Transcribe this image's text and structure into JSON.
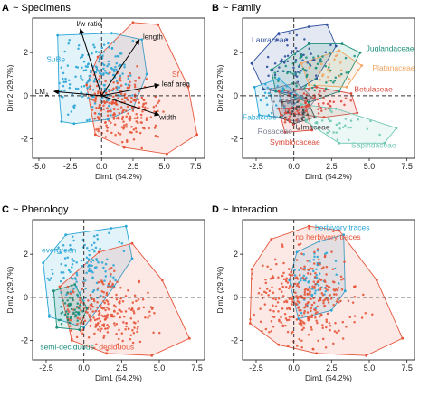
{
  "chart_data": [
    {
      "panel": "A",
      "title": "~ Specimens",
      "type": "scatter",
      "xlabel": "Dim1 (54.2%)",
      "ylabel": "Dim2 (29.7%)",
      "xlim": [
        -5.5,
        8.2
      ],
      "ylim": [
        -2.9,
        3.6
      ],
      "xticks": [
        "-5.0",
        "-2.5",
        "0.0",
        "2.5",
        "5.0",
        "7.5"
      ],
      "xtick_values": [
        -5,
        -2.5,
        0,
        2.5,
        5,
        7.5
      ],
      "yticks": [
        "-2",
        "0",
        "2"
      ],
      "ytick_values": [
        -2,
        0,
        2
      ],
      "grid": false,
      "groups": [
        {
          "name": "SuBe",
          "color": "#2aa6d6",
          "label_at": [
            -4.4,
            1.7
          ],
          "hull": [
            [
              -3.5,
              2.8
            ],
            [
              0.8,
              2.9
            ],
            [
              3.2,
              2.6
            ],
            [
              3.6,
              1.0
            ],
            [
              2.5,
              -0.6
            ],
            [
              0.5,
              -1.1
            ],
            [
              -2.2,
              -1.3
            ],
            [
              -3.2,
              -1.2
            ],
            [
              -3.4,
              0.2
            ]
          ],
          "center": [
            -0.5,
            0.9
          ],
          "spread": [
            1.5,
            0.9
          ],
          "n": 180
        },
        {
          "name": "Sf",
          "color": "#e6553a",
          "label_at": [
            5.6,
            1.0
          ],
          "hull": [
            [
              -0.3,
              1.8
            ],
            [
              2.5,
              3.4
            ],
            [
              4.5,
              3.3
            ],
            [
              6.9,
              0.4
            ],
            [
              7.6,
              -1.8
            ],
            [
              5.2,
              -2.7
            ],
            [
              1.8,
              -2.4
            ],
            [
              -0.5,
              -1.8
            ],
            [
              -1.2,
              0.5
            ]
          ],
          "center": [
            1.3,
            -0.6
          ],
          "spread": [
            1.6,
            0.7
          ],
          "n": 230
        }
      ],
      "variables": [
        {
          "name": "l/w ratio",
          "tip": [
            -1.7,
            3.1
          ],
          "label_at": [
            -2.0,
            3.35
          ]
        },
        {
          "name": "length",
          "tip": [
            3.0,
            2.6
          ],
          "label_at": [
            3.3,
            2.75
          ]
        },
        {
          "name": "leaf area",
          "tip": [
            4.6,
            0.5
          ],
          "label_at": [
            4.8,
            0.55
          ]
        },
        {
          "name": "width",
          "tip": [
            4.6,
            -0.9
          ],
          "label_at": [
            4.6,
            -1.0
          ]
        },
        {
          "name": "LM",
          "subscript": "A",
          "tip": [
            -3.8,
            0.2
          ],
          "label_at": [
            -5.3,
            0.2
          ]
        }
      ]
    },
    {
      "panel": "B",
      "title": "~ Family",
      "type": "scatter",
      "xlabel": "Dim1 (54.2%)",
      "ylabel": "Dim2 (29.7%)",
      "xlim": [
        -3.4,
        8.0
      ],
      "ylim": [
        -2.9,
        3.6
      ],
      "xticks": [
        "-2.5",
        "0.0",
        "2.5",
        "5.0",
        "7.5"
      ],
      "xtick_values": [
        -2.5,
        0,
        2.5,
        5,
        7.5
      ],
      "yticks": [
        "-2",
        "0",
        "2"
      ],
      "ytick_values": [
        -2,
        0,
        2
      ],
      "grid": false,
      "groups": [
        {
          "name": "Lauraceae",
          "color": "#2f4f9e",
          "label_at": [
            -2.8,
            2.6
          ],
          "hull": [
            [
              -2.8,
              1.5
            ],
            [
              -1.0,
              2.9
            ],
            [
              1.0,
              3.2
            ],
            [
              2.2,
              3.3
            ],
            [
              2.8,
              2.3
            ],
            [
              1.5,
              0.8
            ],
            [
              -0.2,
              0.1
            ],
            [
              -2.0,
              0.3
            ]
          ],
          "center": [
            0.3,
            1.6
          ],
          "spread": [
            1.2,
            0.6
          ],
          "n": 55
        },
        {
          "name": "Juglandaceae",
          "color": "#1b8f7a",
          "label_at": [
            4.8,
            2.2
          ],
          "hull": [
            [
              -1.5,
              1.2
            ],
            [
              1.0,
              2.4
            ],
            [
              3.2,
              2.4
            ],
            [
              4.4,
              2.0
            ],
            [
              3.0,
              0.2
            ],
            [
              1.0,
              -0.3
            ],
            [
              -1.2,
              0.2
            ]
          ],
          "center": [
            1.2,
            1.1
          ],
          "spread": [
            1.2,
            0.6
          ],
          "n": 60
        },
        {
          "name": "Platanaceae",
          "color": "#f2a35e",
          "label_at": [
            5.2,
            1.3
          ],
          "hull": [
            [
              0.5,
              1.5
            ],
            [
              3.0,
              2.1
            ],
            [
              4.5,
              1.4
            ],
            [
              3.5,
              0.4
            ],
            [
              1.0,
              0.5
            ]
          ],
          "center": [
            2.3,
            1.2
          ],
          "spread": [
            0.9,
            0.4
          ],
          "n": 20
        },
        {
          "name": "Betulaceae",
          "color": "#d9483b",
          "label_at": [
            4.0,
            0.3
          ],
          "hull": [
            [
              -1.0,
              0.2
            ],
            [
              1.5,
              0.4
            ],
            [
              3.8,
              0.1
            ],
            [
              4.2,
              -0.8
            ],
            [
              2.0,
              -1.0
            ],
            [
              -0.5,
              -0.8
            ]
          ],
          "center": [
            1.3,
            -0.3
          ],
          "spread": [
            1.2,
            0.4
          ],
          "n": 55
        },
        {
          "name": "Fabaceae",
          "color": "#2aa6d6",
          "label_at": [
            -3.4,
            -1.0
          ],
          "hull": [
            [
              -2.6,
              0.4
            ],
            [
              -1.0,
              0.8
            ],
            [
              0.5,
              -0.1
            ],
            [
              -0.8,
              -1.0
            ],
            [
              -2.3,
              -0.9
            ]
          ],
          "center": [
            -1.2,
            -0.2
          ],
          "spread": [
            0.7,
            0.4
          ],
          "n": 25
        },
        {
          "name": "Rosaceae",
          "color": "#7a7f94",
          "label_at": [
            -2.4,
            -1.65
          ],
          "hull": [
            [
              -1.6,
              0.3
            ],
            [
              0.2,
              0.6
            ],
            [
              1.4,
              -0.2
            ],
            [
              0.3,
              -1.2
            ],
            [
              -1.3,
              -1.0
            ]
          ],
          "center": [
            -0.2,
            -0.3
          ],
          "spread": [
            0.7,
            0.4
          ],
          "n": 35
        },
        {
          "name": "Ulmaceae",
          "color": "#444444",
          "label_at": [
            0.1,
            -1.45
          ],
          "hull": [
            [
              -0.8,
              -0.3
            ],
            [
              0.8,
              -0.1
            ],
            [
              1.4,
              -1.0
            ],
            [
              0.0,
              -1.3
            ],
            [
              -0.9,
              -1.0
            ]
          ],
          "center": [
            0.2,
            -0.7
          ],
          "spread": [
            0.5,
            0.3
          ],
          "n": 18
        },
        {
          "name": "Symblocaceae",
          "color": "#d9483b",
          "label_at": [
            -1.6,
            -2.15
          ],
          "hull": [
            [
              -1.0,
              -0.6
            ],
            [
              0.8,
              -0.5
            ],
            [
              1.2,
              -1.6
            ],
            [
              -0.6,
              -1.7
            ]
          ],
          "center": [
            0.0,
            -1.1
          ],
          "spread": [
            0.5,
            0.3
          ],
          "n": 15
        },
        {
          "name": "Sapindaceae",
          "color": "#6fc7b4",
          "label_at": [
            3.8,
            -2.3
          ],
          "hull": [
            [
              0.5,
              -0.4
            ],
            [
              2.8,
              -0.6
            ],
            [
              6.8,
              -1.5
            ],
            [
              6.0,
              -2.2
            ],
            [
              3.0,
              -2.2
            ],
            [
              0.8,
              -1.2
            ]
          ],
          "center": [
            2.8,
            -1.3
          ],
          "spread": [
            1.4,
            0.4
          ],
          "n": 30
        }
      ]
    },
    {
      "panel": "C",
      "title": "~ Phenology",
      "type": "scatter",
      "xlabel": "Dim1 (54.2%)",
      "ylabel": "Dim2 (29.7%)",
      "xlim": [
        -3.4,
        8.0
      ],
      "ylim": [
        -2.9,
        3.6
      ],
      "xticks": [
        "-2.5",
        "0.0",
        "2.5",
        "5.0",
        "7.5"
      ],
      "xtick_values": [
        -2.5,
        0,
        2.5,
        5,
        7.5
      ],
      "yticks": [
        "-2",
        "0",
        "2"
      ],
      "ytick_values": [
        -2,
        0,
        2
      ],
      "grid": false,
      "groups": [
        {
          "name": "evergreen",
          "color": "#2aa6d6",
          "label_at": [
            -2.8,
            2.2
          ],
          "hull": [
            [
              -2.7,
              1.6
            ],
            [
              -1.2,
              2.9
            ],
            [
              1.8,
              3.2
            ],
            [
              2.8,
              3.3
            ],
            [
              3.2,
              1.8
            ],
            [
              2.0,
              0.5
            ],
            [
              0.0,
              -1.4
            ],
            [
              -2.3,
              -0.9
            ]
          ],
          "center": [
            0.1,
            1.2
          ],
          "spread": [
            1.3,
            0.9
          ],
          "n": 120
        },
        {
          "name": "deciduous",
          "color": "#e6553a",
          "label_at": [
            1.0,
            -2.3
          ],
          "hull": [
            [
              -1.6,
              0.5
            ],
            [
              1.0,
              2.1
            ],
            [
              3.2,
              2.5
            ],
            [
              5.2,
              0.8
            ],
            [
              7.0,
              -1.9
            ],
            [
              4.5,
              -2.7
            ],
            [
              1.5,
              -2.6
            ],
            [
              -0.8,
              -2.0
            ]
          ],
          "center": [
            1.3,
            -0.7
          ],
          "spread": [
            1.6,
            0.8
          ],
          "n": 230
        },
        {
          "name": "semi-deciduous",
          "color": "#1b8f7a",
          "label_at": [
            -2.9,
            -2.3
          ],
          "hull": [
            [
              -2.0,
              0.3
            ],
            [
              -0.6,
              0.6
            ],
            [
              0.2,
              -0.5
            ],
            [
              -0.3,
              -1.5
            ],
            [
              -1.8,
              -1.4
            ]
          ],
          "center": [
            -0.9,
            -0.5
          ],
          "spread": [
            0.5,
            0.4
          ],
          "n": 45
        }
      ]
    },
    {
      "panel": "D",
      "title": "~ Interaction",
      "type": "scatter",
      "xlabel": "Dim1 (54.2%)",
      "ylabel": "Dim2 (29.7%)",
      "xlim": [
        -3.4,
        8.0
      ],
      "ylim": [
        -2.9,
        3.6
      ],
      "xticks": [
        "-2.5",
        "0.0",
        "2.5",
        "5.0",
        "7.5"
      ],
      "xtick_values": [
        -2.5,
        0,
        2.5,
        5,
        7.5
      ],
      "yticks": [
        "-2",
        "0",
        "2"
      ],
      "ytick_values": [
        -2,
        0,
        2
      ],
      "grid": false,
      "groups": [
        {
          "name": "herbivory traces",
          "color": "#2aa6d6",
          "label_at": [
            1.4,
            3.25
          ],
          "hull": [
            [
              0.2,
              2.1
            ],
            [
              1.7,
              2.6
            ],
            [
              3.3,
              2.9
            ],
            [
              3.4,
              0.3
            ],
            [
              2.5,
              -0.6
            ],
            [
              0.3,
              -1.0
            ],
            [
              -0.3,
              0.8
            ]
          ],
          "center": [
            1.3,
            0.9
          ],
          "spread": [
            1.0,
            0.8
          ],
          "n": 60
        },
        {
          "name": "no herbivory traces",
          "color": "#e6553a",
          "label_at": [
            0.1,
            2.8
          ],
          "hull": [
            [
              -2.8,
              1.3
            ],
            [
              -1.5,
              2.7
            ],
            [
              1.0,
              3.3
            ],
            [
              3.0,
              3.1
            ],
            [
              5.5,
              0.8
            ],
            [
              7.2,
              -1.9
            ],
            [
              4.8,
              -2.7
            ],
            [
              1.5,
              -2.6
            ],
            [
              -1.0,
              -2.2
            ],
            [
              -2.9,
              -1.2
            ]
          ],
          "center": [
            0.6,
            -0.1
          ],
          "spread": [
            1.7,
            1.1
          ],
          "n": 330
        }
      ]
    }
  ]
}
